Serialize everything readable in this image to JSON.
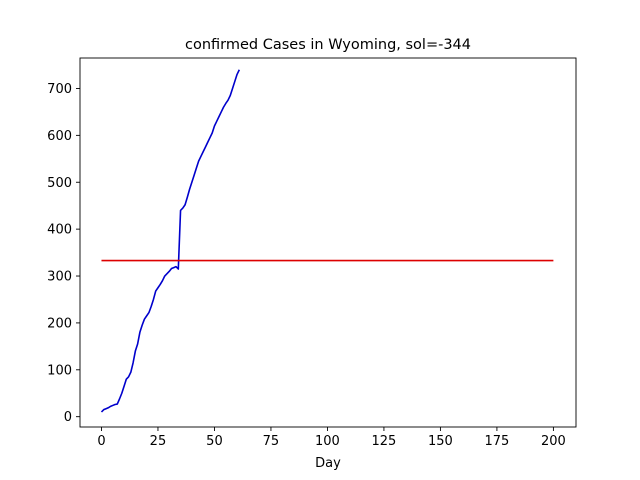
{
  "chart_data": {
    "type": "line",
    "title": "confirmed Cases in Wyoming, sol=-344",
    "xlabel": "Day",
    "ylabel": "",
    "xlim": [
      -9.5,
      210
    ],
    "ylim": [
      -22,
      765
    ],
    "xticks": [
      0,
      25,
      50,
      75,
      100,
      125,
      150,
      175,
      200
    ],
    "yticks": [
      0,
      100,
      200,
      300,
      400,
      500,
      600,
      700
    ],
    "grid": false,
    "series": [
      {
        "color": "#0000cc",
        "x": [
          0,
          1,
          2,
          3,
          4,
          5,
          6,
          7,
          8,
          9,
          10,
          11,
          12,
          13,
          14,
          15,
          16,
          17,
          18,
          19,
          20,
          21,
          22,
          23,
          24,
          25,
          26,
          27,
          28,
          29,
          30,
          31,
          32,
          33,
          34,
          35,
          36,
          37,
          38,
          39,
          40,
          41,
          42,
          43,
          44,
          45,
          46,
          47,
          48,
          49,
          50,
          51,
          52,
          53,
          54,
          55,
          56,
          57,
          58,
          59,
          60,
          61
        ],
        "y": [
          10,
          15,
          17,
          19,
          22,
          24,
          26,
          27,
          38,
          50,
          65,
          80,
          85,
          95,
          115,
          140,
          155,
          180,
          195,
          208,
          215,
          222,
          235,
          250,
          268,
          275,
          282,
          290,
          300,
          305,
          310,
          316,
          318,
          320,
          315,
          440,
          445,
          452,
          468,
          485,
          500,
          515,
          530,
          545,
          555,
          565,
          575,
          585,
          595,
          605,
          620,
          630,
          640,
          650,
          660,
          668,
          675,
          685,
          700,
          715,
          730,
          740
        ]
      },
      {
        "color": "#dd0000",
        "x": [
          0,
          200
        ],
        "y": [
          333,
          333
        ]
      }
    ]
  }
}
